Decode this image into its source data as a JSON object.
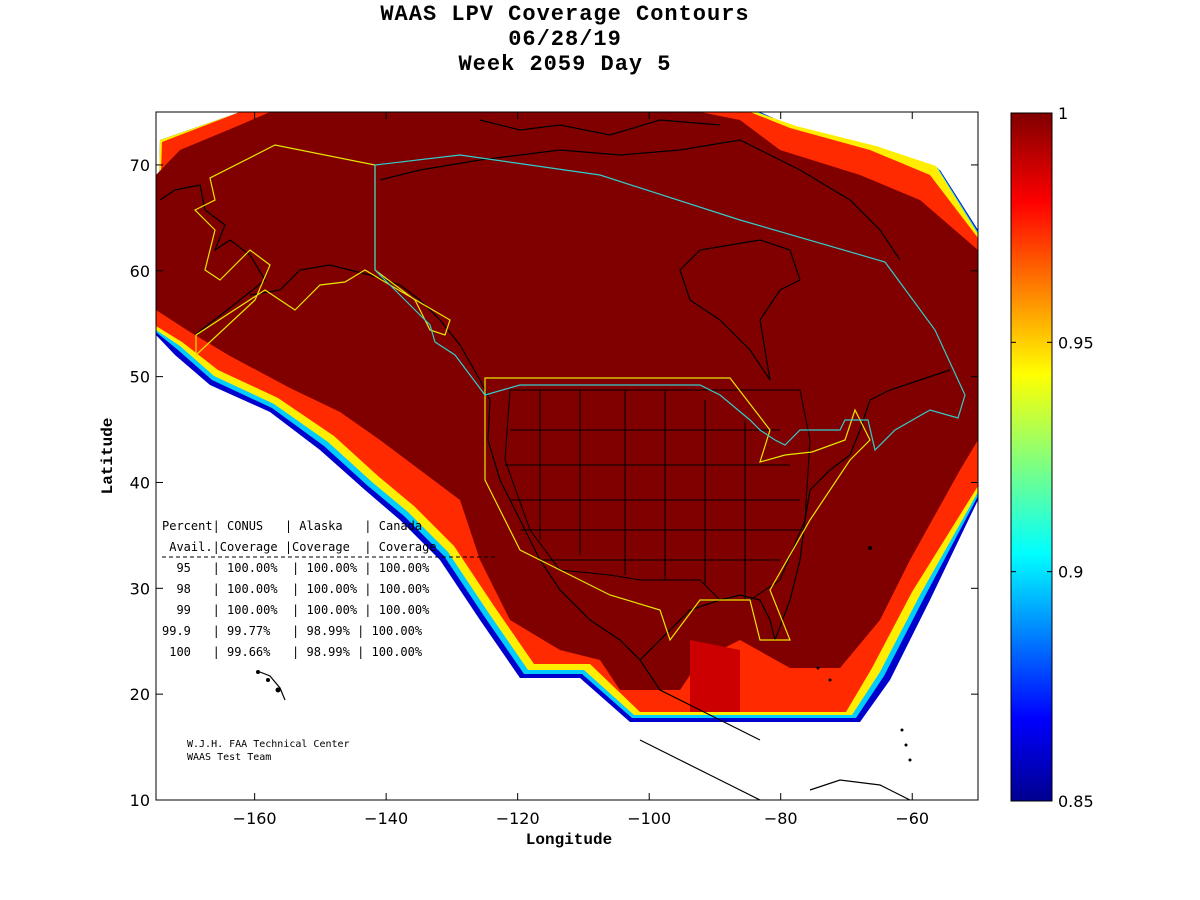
{
  "title": [
    "WAAS LPV Coverage Contours",
    "06/28/19",
    "Week 2059 Day 5"
  ],
  "axes": {
    "xlabel": "Longitude",
    "ylabel": "Latitude",
    "xticks": [
      -160,
      -140,
      -120,
      -100,
      -80,
      -60
    ],
    "yticks": [
      10,
      20,
      30,
      40,
      50,
      60,
      70
    ],
    "xlim": [
      -175,
      -50
    ],
    "ylim": [
      10,
      75
    ]
  },
  "colorbar": {
    "ticks": [
      "1",
      "0.95",
      "0.9",
      "0.85"
    ],
    "range": [
      0.85,
      1.0
    ],
    "colormap": "jet"
  },
  "table": {
    "header": [
      "Percent| CONUS   | Alaska   | Canada",
      " Avail.|Coverage |Coverage  | Coverage"
    ],
    "rows": [
      "  95   | 100.00%  | 100.00% | 100.00%",
      "  98   | 100.00%  | 100.00% | 100.00%",
      "  99   | 100.00%  | 100.00% | 100.00%",
      "99.9   | 99.77%   | 98.99% | 100.00%",
      " 100   | 99.66%   | 98.99% | 100.00%"
    ]
  },
  "credits": [
    "W.J.H. FAA Technical Center",
    "WAAS Test Team"
  ],
  "colors": {
    "coverage_max": "#800000",
    "conus_outline": "#e6e600",
    "canada_outline": "#33cccc",
    "coast": "#000000"
  }
}
